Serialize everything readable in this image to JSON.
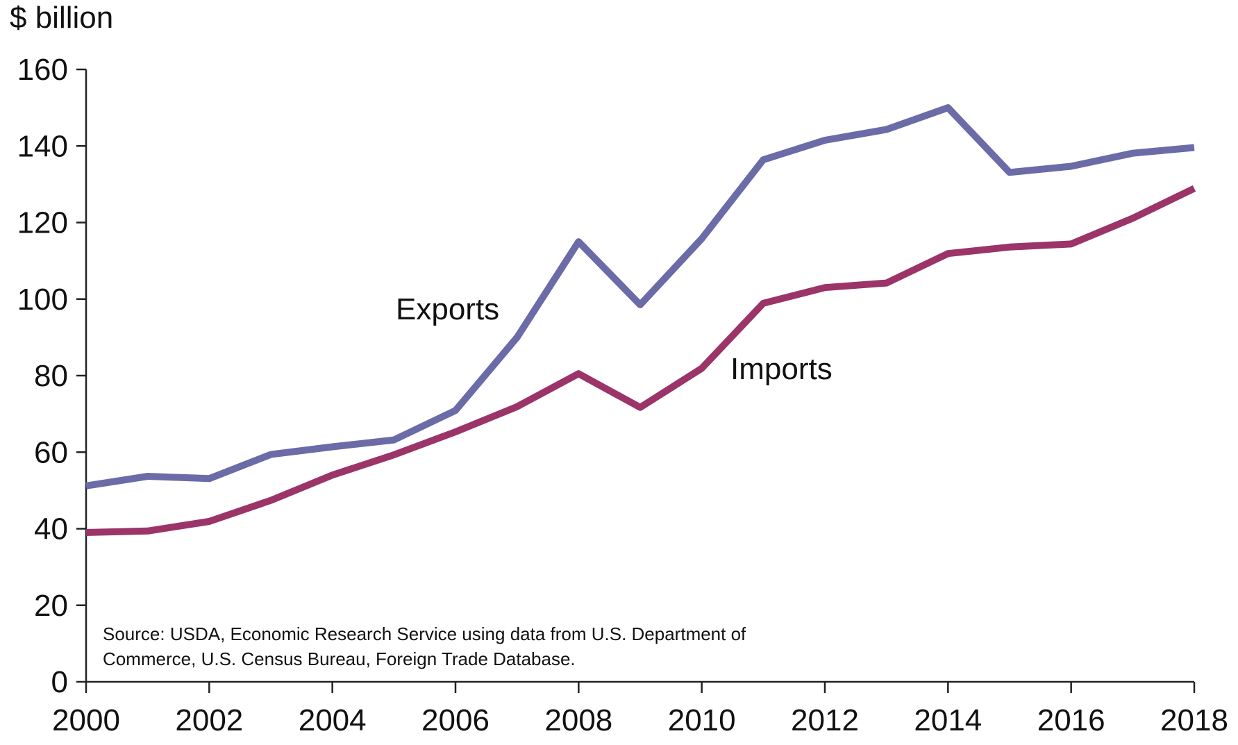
{
  "chart_data": {
    "type": "line",
    "ylabel": "$ billion",
    "xlabel": "",
    "x": [
      2000,
      2001,
      2002,
      2003,
      2004,
      2005,
      2006,
      2007,
      2008,
      2009,
      2010,
      2011,
      2012,
      2013,
      2014,
      2015,
      2016,
      2017,
      2018
    ],
    "x_ticks": [
      "2000",
      "2002",
      "2004",
      "2006",
      "2008",
      "2010",
      "2012",
      "2014",
      "2016",
      "2018"
    ],
    "y_ticks": [
      "0",
      "20",
      "40",
      "60",
      "80",
      "100",
      "120",
      "140",
      "160"
    ],
    "xlim": [
      2000,
      2018
    ],
    "ylim": [
      0,
      160
    ],
    "grid": false,
    "series": [
      {
        "name": "Exports",
        "color": "#6b6ba8",
        "values": [
          51.2,
          53.7,
          53.1,
          59.4,
          61.4,
          63.2,
          70.9,
          90.0,
          115.0,
          98.5,
          115.8,
          136.4,
          141.5,
          144.3,
          150.0,
          133.1,
          134.7,
          138.1,
          139.6
        ]
      },
      {
        "name": "Imports",
        "color": "#9b3469",
        "values": [
          39.0,
          39.4,
          41.9,
          47.4,
          54.0,
          59.3,
          65.3,
          71.9,
          80.5,
          71.7,
          81.9,
          98.9,
          103.0,
          104.2,
          111.9,
          113.6,
          114.4,
          121.1,
          128.9
        ]
      }
    ],
    "annotation": {
      "source_line1": "Source: USDA, Economic Research Service using data from U.S. Department of",
      "source_line2": "Commerce, U.S. Census Bureau, Foreign Trade Database."
    }
  }
}
